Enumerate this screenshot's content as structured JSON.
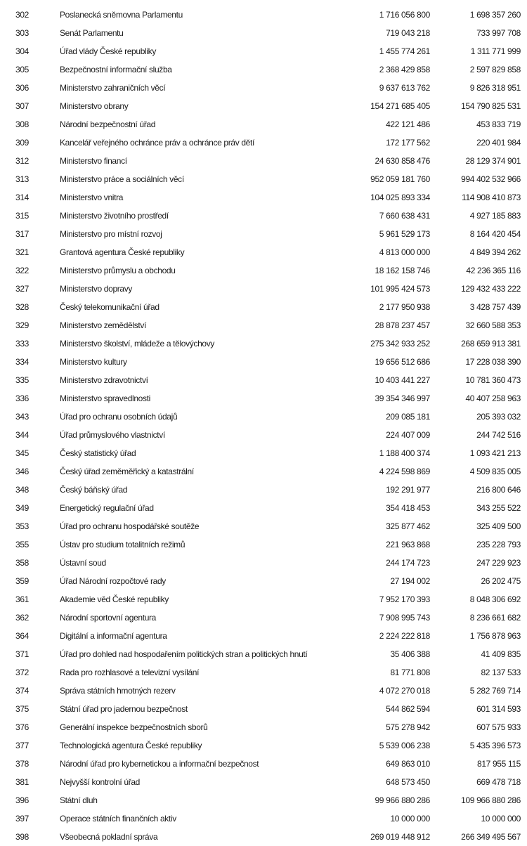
{
  "rows": [
    {
      "code": "302",
      "name": "Poslanecká sněmovna Parlamentu",
      "value1": "1 716 056 800",
      "value2": "1 698 357 260"
    },
    {
      "code": "303",
      "name": "Senát Parlamentu",
      "value1": "719 043 218",
      "value2": "733 997 708"
    },
    {
      "code": "304",
      "name": "Úřad vlády České republiky",
      "value1": "1 455 774 261",
      "value2": "1 311 771 999"
    },
    {
      "code": "305",
      "name": "Bezpečnostní informační služba",
      "value1": "2 368 429 858",
      "value2": "2 597 829 858"
    },
    {
      "code": "306",
      "name": "Ministerstvo zahraničních věcí",
      "value1": "9 637 613 762",
      "value2": "9 826 318 951"
    },
    {
      "code": "307",
      "name": "Ministerstvo obrany",
      "value1": "154 271 685 405",
      "value2": "154 790 825 531"
    },
    {
      "code": "308",
      "name": "Národní bezpečnostní úřad",
      "value1": "422 121 486",
      "value2": "453 833 719"
    },
    {
      "code": "309",
      "name": "Kancelář veřejného ochránce práv a ochránce práv dětí",
      "value1": "172 177 562",
      "value2": "220 401 984"
    },
    {
      "code": "312",
      "name": "Ministerstvo financí",
      "value1": "24 630 858 476",
      "value2": "28 129 374 901"
    },
    {
      "code": "313",
      "name": "Ministerstvo práce a sociálních věcí",
      "value1": "952 059 181 760",
      "value2": "994 402 532 966"
    },
    {
      "code": "314",
      "name": "Ministerstvo vnitra",
      "value1": "104 025 893 334",
      "value2": "114 908 410 873"
    },
    {
      "code": "315",
      "name": "Ministerstvo životního prostředí",
      "value1": "7 660 638 431",
      "value2": "4 927 185 883"
    },
    {
      "code": "317",
      "name": "Ministerstvo pro místní rozvoj",
      "value1": "5 961 529 173",
      "value2": "8 164 420 454"
    },
    {
      "code": "321",
      "name": "Grantová agentura České republiky",
      "value1": "4 813 000 000",
      "value2": "4 849 394 262"
    },
    {
      "code": "322",
      "name": "Ministerstvo průmyslu a obchodu",
      "value1": "18 162 158 746",
      "value2": "42 236 365 116"
    },
    {
      "code": "327",
      "name": "Ministerstvo dopravy",
      "value1": "101 995 424 573",
      "value2": "129 432 433 222"
    },
    {
      "code": "328",
      "name": "Český telekomunikační úřad",
      "value1": "2 177 950 938",
      "value2": "3 428 757 439"
    },
    {
      "code": "329",
      "name": "Ministerstvo zemědělství",
      "value1": "28 878 237 457",
      "value2": "32 660 588 353"
    },
    {
      "code": "333",
      "name": "Ministerstvo školství, mládeže a tělovýchovy",
      "value1": "275 342 933 252",
      "value2": "268 659 913 381"
    },
    {
      "code": "334",
      "name": "Ministerstvo kultury",
      "value1": "19 656 512 686",
      "value2": "17 228 038 390"
    },
    {
      "code": "335",
      "name": "Ministerstvo zdravotnictví",
      "value1": "10 403 441 227",
      "value2": "10 781 360 473"
    },
    {
      "code": "336",
      "name": "Ministerstvo spravedlnosti",
      "value1": "39 354 346 997",
      "value2": "40 407 258 963"
    },
    {
      "code": "343",
      "name": "Úřad pro ochranu osobních údajů",
      "value1": "209 085 181",
      "value2": "205 393 032"
    },
    {
      "code": "344",
      "name": "Úřad průmyslového vlastnictví",
      "value1": "224 407 009",
      "value2": "244 742 516"
    },
    {
      "code": "345",
      "name": "Český statistický úřad",
      "value1": "1 188 400 374",
      "value2": "1 093 421 213"
    },
    {
      "code": "346",
      "name": "Český úřad zeměměřický a katastrální",
      "value1": "4 224 598 869",
      "value2": "4 509 835 005"
    },
    {
      "code": "348",
      "name": "Český báňský úřad",
      "value1": "192 291 977",
      "value2": "216 800 646"
    },
    {
      "code": "349",
      "name": "Energetický regulační úřad",
      "value1": "354 418 453",
      "value2": "343 255 522"
    },
    {
      "code": "353",
      "name": "Úřad pro ochranu hospodářské soutěže",
      "value1": "325 877 462",
      "value2": "325 409 500"
    },
    {
      "code": "355",
      "name": "Ústav pro studium totalitních režimů",
      "value1": "221 963 868",
      "value2": "235 228 793"
    },
    {
      "code": "358",
      "name": "Ústavní soud",
      "value1": "244 174 723",
      "value2": "247 229 923"
    },
    {
      "code": "359",
      "name": "Úřad Národní rozpočtové rady",
      "value1": "27 194 002",
      "value2": "26 202 475"
    },
    {
      "code": "361",
      "name": "Akademie věd České republiky",
      "value1": "7 952 170 393",
      "value2": "8 048 306 692"
    },
    {
      "code": "362",
      "name": "Národní sportovní agentura",
      "value1": "7 908 995 743",
      "value2": "8 236 661 682"
    },
    {
      "code": "364",
      "name": "Digitální a informační agentura",
      "value1": "2 224 222 818",
      "value2": "1 756 878 963"
    },
    {
      "code": "371",
      "name": "Úřad pro dohled nad hospodařením politických stran a politických hnutí",
      "value1": "35 406 388",
      "value2": "41 409 835"
    },
    {
      "code": "372",
      "name": "Rada pro rozhlasové a televizní vysílání",
      "value1": "81 771 808",
      "value2": "82 137 533"
    },
    {
      "code": "374",
      "name": "Správa státních hmotných rezerv",
      "value1": "4 072 270 018",
      "value2": "5 282 769 714"
    },
    {
      "code": "375",
      "name": "Státní úřad pro jadernou bezpečnost",
      "value1": "544 862 594",
      "value2": "601 314 593"
    },
    {
      "code": "376",
      "name": "Generální inspekce bezpečnostních sborů",
      "value1": "575 278 942",
      "value2": "607 575 933"
    },
    {
      "code": "377",
      "name": "Technologická agentura České republiky",
      "value1": "5 539 006 238",
      "value2": "5 435 396 573"
    },
    {
      "code": "378",
      "name": "Národní úřad pro kybernetickou a informační bezpečnost",
      "value1": "649 863 010",
      "value2": "817 955 115"
    },
    {
      "code": "381",
      "name": "Nejvyšší kontrolní úřad",
      "value1": "648 573 450",
      "value2": "669 478 718"
    },
    {
      "code": "396",
      "name": "Státní dluh",
      "value1": "99 966 880 286",
      "value2": "109 966 880 286"
    },
    {
      "code": "397",
      "name": "Operace státních finančních aktiv",
      "value1": "10 000 000",
      "value2": "10 000 000"
    },
    {
      "code": "398",
      "name": "Všeobecná pokladní správa",
      "value1": "269 019 448 912",
      "value2": "266 349 495 567"
    }
  ]
}
